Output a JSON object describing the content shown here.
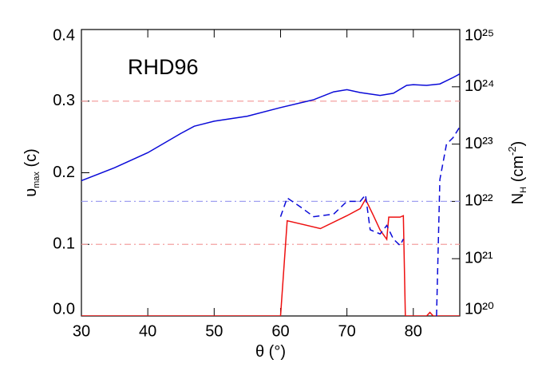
{
  "chart_data": {
    "type": "line",
    "annotation": "RHD96",
    "annotation_color": "#f04a10",
    "xlabel": [
      "θ (°)"
    ],
    "ylabel": [
      "υ",
      "max",
      " (c)"
    ],
    "y2label": [
      "N",
      "H",
      " (cm",
      "-2",
      ")"
    ],
    "xlim": [
      30,
      87
    ],
    "xticks": [
      30,
      40,
      50,
      60,
      70,
      80
    ],
    "ylim": [
      0,
      0.4
    ],
    "yticks": [
      {
        "value": 0,
        "label": "0.0"
      },
      0.1,
      0.2,
      0.3,
      0.4
    ],
    "y2lim": [
      1e+20,
      1e+25
    ],
    "y2scale": "log",
    "y2ticks": [
      {
        "value": 1e+20,
        "label": "10²⁰"
      },
      {
        "value": 1e+21,
        "label": "10²¹"
      },
      {
        "value": 1e+22,
        "label": "10²²"
      },
      {
        "value": 1e+23,
        "label": "10²³"
      },
      {
        "value": 1e+24,
        "label": "10²⁴"
      },
      {
        "value": 1e+25,
        "label": "10²⁵"
      }
    ],
    "reference_lines": [
      {
        "value": 0.3,
        "color": "#f4a0a0",
        "dash": "dashed"
      },
      {
        "value": 0.1,
        "color": "#f4a0a0",
        "dash": "dashdot"
      },
      {
        "value": 1e+22,
        "axis": "y2",
        "color": "#a0a0f0",
        "dash": "dashdot"
      }
    ],
    "series": [
      {
        "color": "#0a0ad8",
        "dash": "solid",
        "x": [
          30,
          35,
          40,
          45,
          47,
          50,
          55,
          60,
          65,
          68,
          70,
          72,
          75,
          77,
          79,
          80,
          82,
          84,
          86,
          87
        ],
        "values": [
          0.189,
          0.207,
          0.228,
          0.255,
          0.265,
          0.272,
          0.279,
          0.291,
          0.302,
          0.313,
          0.316,
          0.312,
          0.308,
          0.311,
          0.322,
          0.323,
          0.322,
          0.324,
          0.333,
          0.338
        ]
      },
      {
        "color": "#ee1010",
        "dash": "solid",
        "x": [
          30,
          60,
          61,
          66,
          70,
          72,
          72.8,
          74,
          75,
          76,
          76.3,
          78,
          78.5,
          78.8,
          82,
          82.5,
          83,
          87
        ],
        "values": [
          0,
          0,
          0.133,
          0.122,
          0.14,
          0.15,
          0.163,
          0.14,
          0.12,
          0.107,
          0.138,
          0.138,
          0.14,
          0,
          0,
          0.005,
          0,
          0
        ]
      },
      {
        "color": "#0a0ad8",
        "dash": "dashed",
        "axis": "y2",
        "x": [
          60,
          61,
          63,
          65,
          68,
          70,
          72,
          72.8,
          73.5,
          75,
          76,
          77,
          78,
          78.5,
          81,
          83.5,
          84,
          85,
          86,
          87
        ],
        "values": [
          5.4e+21,
          1.15e+22,
          8e+21,
          5.4e+21,
          6e+21,
          1e+22,
          1e+22,
          1.3e+22,
          3.2e+21,
          2.7e+21,
          3.8e+21,
          2.2e+21,
          1.7e+21,
          2.2e+21,
          null,
          1e+20,
          2.4e+22,
          1e+23,
          1.3e+23,
          2e+23
        ]
      }
    ]
  }
}
